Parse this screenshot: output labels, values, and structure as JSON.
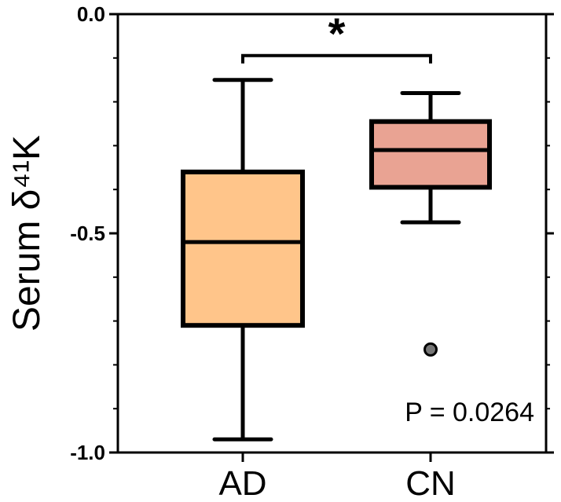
{
  "chart_data": {
    "type": "box",
    "ylabel": "Serum δ⁴¹K",
    "ylim": [
      -1.0,
      0.0
    ],
    "yticks": [
      {
        "value": 0.0,
        "label": "0.0"
      },
      {
        "value": -0.5,
        "label": "-0.5"
      },
      {
        "value": -1.0,
        "label": "-1.0"
      }
    ],
    "minor_ticks": [
      -0.1,
      -0.2,
      -0.3,
      -0.4,
      -0.6,
      -0.7,
      -0.8,
      -0.9
    ],
    "categories": [
      "AD",
      "CN"
    ],
    "boxes": [
      {
        "name": "AD",
        "whisker_low": -0.97,
        "q1": -0.71,
        "median": -0.52,
        "q3": -0.36,
        "whisker_high": -0.15,
        "outliers": [],
        "fill": "#FFC58A"
      },
      {
        "name": "CN",
        "whisker_low": -0.475,
        "q1": -0.395,
        "median": -0.31,
        "q3": -0.245,
        "whisker_high": -0.18,
        "outliers": [
          -0.765
        ],
        "fill": "#E9A393"
      }
    ],
    "significance": {
      "label": "*",
      "between": [
        "AD",
        "CN"
      ],
      "y": -0.1
    },
    "annotation": "P = 0.0264",
    "grid": false,
    "legend": "none"
  }
}
